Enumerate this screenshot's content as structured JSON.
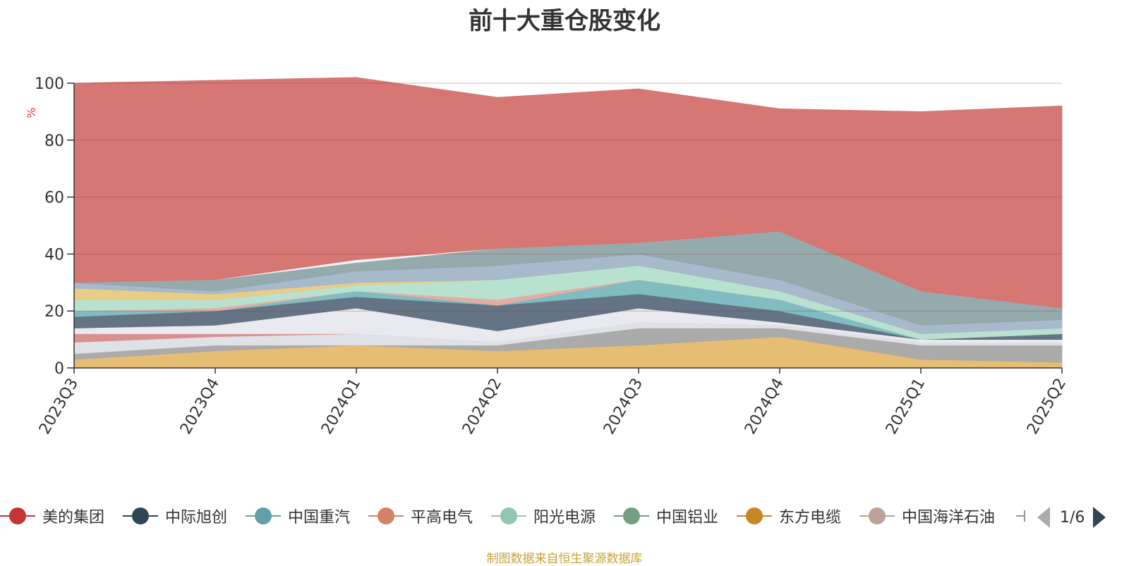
{
  "chart_data": {
    "type": "area",
    "title": "前十大重仓股变化",
    "ylabel": "%",
    "xlabel": "",
    "ylim": [
      0,
      100
    ],
    "yticks": [
      0,
      20,
      40,
      60,
      80,
      100
    ],
    "categories": [
      "2023Q3",
      "2023Q4",
      "2024Q1",
      "2024Q2",
      "2024Q3",
      "2024Q4",
      "2025Q1",
      "2025Q2"
    ],
    "stacked": true,
    "grid": true,
    "legend_position": "bottom",
    "bands": [
      {
        "color": "#e4b96b",
        "values": [
          3,
          6,
          8,
          6,
          8,
          11,
          3,
          2
        ]
      },
      {
        "color": "#a7a7a7",
        "values": [
          2,
          2,
          0,
          2,
          6,
          3,
          5,
          6
        ]
      },
      {
        "color": "#dcdfe4",
        "values": [
          4,
          3,
          4,
          1,
          2,
          1,
          1,
          1
        ]
      },
      {
        "color": "#d98a8a",
        "values": [
          3,
          1,
          0,
          0,
          0,
          0,
          0,
          0
        ]
      },
      {
        "color": "#e7e9ee",
        "values": [
          2,
          3,
          9,
          4,
          5,
          1,
          1,
          1
        ]
      },
      {
        "color": "#5c6d7e",
        "values": [
          4,
          5,
          4,
          9,
          5,
          4,
          0,
          2
        ]
      },
      {
        "color": "#79b8be",
        "values": [
          2,
          0,
          2,
          0,
          5,
          4,
          0,
          0
        ]
      },
      {
        "color": "#e3a9a0",
        "values": [
          0,
          1,
          0,
          2,
          0,
          0,
          0,
          0
        ]
      },
      {
        "color": "#b5dfcd",
        "values": [
          4,
          3,
          2,
          7,
          5,
          3,
          2,
          2
        ]
      },
      {
        "color": "#e8c97e",
        "values": [
          4,
          2,
          1,
          0,
          0,
          0,
          0,
          0
        ]
      },
      {
        "color": "#a2b6c9",
        "values": [
          2,
          1,
          4,
          5,
          4,
          4,
          3,
          3
        ]
      },
      {
        "color": "#8fa5a8",
        "values": [
          0,
          4,
          3,
          6,
          4,
          17,
          12,
          4
        ]
      },
      {
        "color": "#f2f2f2",
        "values": [
          0,
          0,
          1,
          0,
          0,
          0,
          0,
          0
        ]
      },
      {
        "color": "#d4706b",
        "values": [
          70,
          70,
          64,
          53,
          54,
          43,
          63,
          71
        ]
      }
    ],
    "series": [
      {
        "name": "美的集团",
        "color": "#c23531"
      },
      {
        "name": "中际旭创",
        "color": "#2f4554"
      },
      {
        "name": "中国重汽",
        "color": "#61a0a8"
      },
      {
        "name": "平高电气",
        "color": "#d48265"
      },
      {
        "name": "阳光电源",
        "color": "#91c7ae"
      },
      {
        "name": "中国铝业",
        "color": "#749f83"
      },
      {
        "name": "东方电缆",
        "color": "#ca8622"
      },
      {
        "name": "中国海洋石油",
        "color": "#bda29a"
      }
    ]
  },
  "legend": {
    "page": "1/6"
  },
  "source_note": "制图数据来自恒生聚源数据库"
}
